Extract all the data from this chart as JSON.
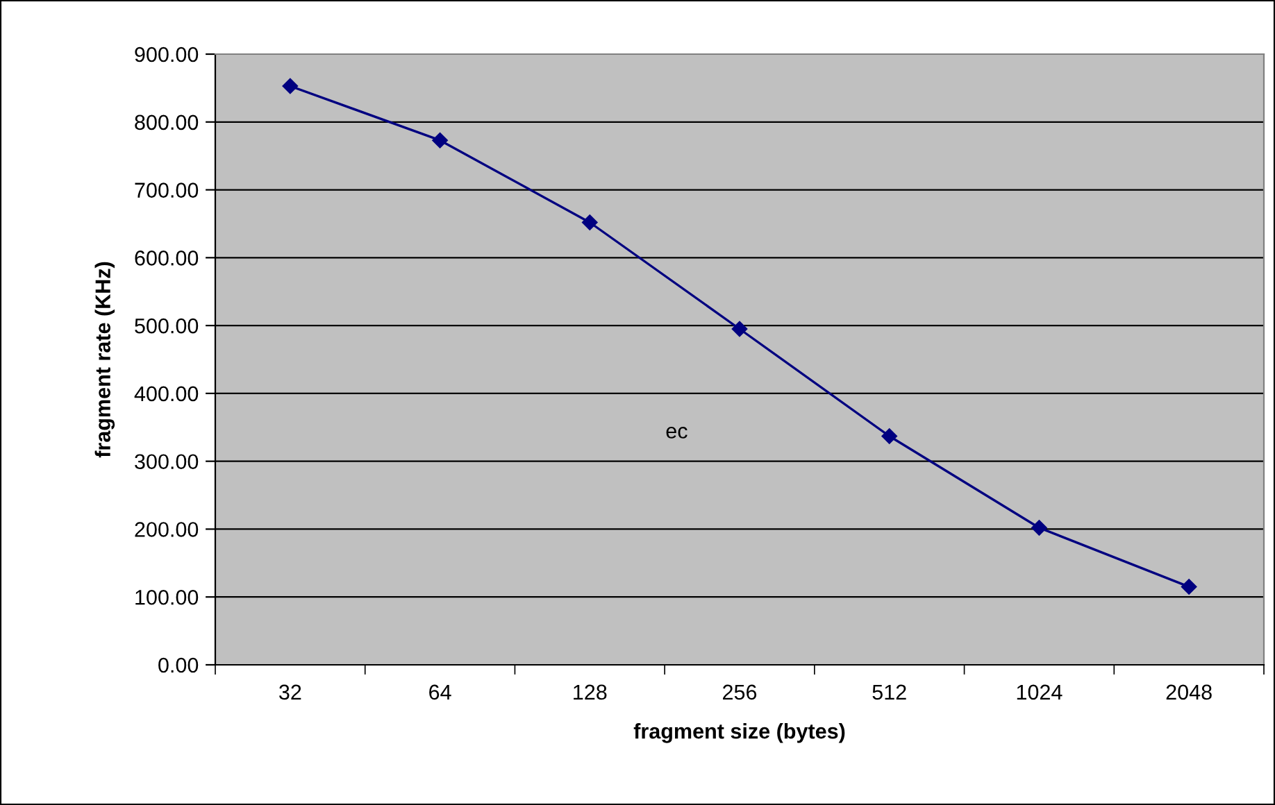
{
  "chart_data": {
    "type": "line",
    "xlabel": "fragment size (bytes)",
    "ylabel": "fragment rate (KHz)",
    "categories": [
      "32",
      "64",
      "128",
      "256",
      "512",
      "1024",
      "2048"
    ],
    "series": [
      {
        "color": "#000080",
        "values": [
          853,
          773,
          652,
          495,
          337,
          202,
          115
        ]
      }
    ],
    "ylim": [
      0,
      900
    ],
    "yticks": [
      {
        "value": 0,
        "label": "0.00"
      },
      {
        "value": 100,
        "label": "100.00"
      },
      {
        "value": 200,
        "label": "200.00"
      },
      {
        "value": 300,
        "label": "300.00"
      },
      {
        "value": 400,
        "label": "400.00"
      },
      {
        "value": 500,
        "label": "500.00"
      },
      {
        "value": 600,
        "label": "600.00"
      },
      {
        "value": 700,
        "label": "700.00"
      },
      {
        "value": 800,
        "label": "800.00"
      },
      {
        "value": 900,
        "label": "900.00"
      }
    ],
    "grid": "y",
    "marker": "diamond",
    "line_style": "solid",
    "annotations": [
      "ec"
    ]
  }
}
